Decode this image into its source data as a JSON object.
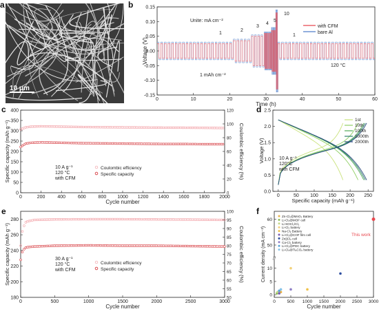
{
  "panels": {
    "a": {
      "label": "a",
      "scale_bar": "10 μm"
    },
    "b": {
      "label": "b"
    },
    "c": {
      "label": "c"
    },
    "d": {
      "label": "d"
    },
    "e": {
      "label": "e"
    },
    "f": {
      "label": "f"
    }
  },
  "chart_data": [
    {
      "id": "b",
      "type": "line",
      "xlabel": "Time (h)",
      "ylabel": "Voltage (V)",
      "xlim": [
        0,
        60
      ],
      "ylim": [
        -0.15,
        0.15
      ],
      "xticks": [
        0,
        10,
        20,
        30,
        40,
        50,
        60
      ],
      "yticks": [
        -0.15,
        -0.1,
        -0.05,
        0.0,
        0.05,
        0.1,
        0.15
      ],
      "ytick_labels": [
        "-0.15",
        "-0.10",
        "-0.05",
        "0.00",
        "0.05",
        "0.10",
        "0.15"
      ],
      "annotations": {
        "unit": "Unite: mA cm⁻²",
        "areal": "1 mAh cm⁻²",
        "temp": "120 °C"
      },
      "current_densities": [
        {
          "label": "1",
          "t_start": 0,
          "t_end": 21,
          "cfm_amp": 0.025,
          "al_amp": 0.03
        },
        {
          "label": "2",
          "t_start": 21,
          "t_end": 26,
          "cfm_amp": 0.035,
          "al_amp": 0.04
        },
        {
          "label": "3",
          "t_start": 26,
          "t_end": 29.5,
          "cfm_amp": 0.05,
          "al_amp": 0.055
        },
        {
          "label": "4",
          "t_start": 29.5,
          "t_end": 31.5,
          "cfm_amp": 0.06,
          "al_amp": 0.065
        },
        {
          "label": "5",
          "t_start": 31.5,
          "t_end": 32.7,
          "cfm_amp": 0.07,
          "al_amp": 0.08
        },
        {
          "label": "10",
          "t_start": 32.7,
          "t_end": 33.3,
          "cfm_amp": 0.13,
          "al_amp": 0.14
        },
        {
          "label": "1",
          "t_start": 33.3,
          "t_end": 60,
          "cfm_amp": 0.025,
          "al_amp": 0.03
        }
      ],
      "series": [
        {
          "name": "with CFM",
          "color": "#e8484f"
        },
        {
          "name": "bare Al",
          "color": "#4f7ec9"
        }
      ]
    },
    {
      "id": "c",
      "type": "scatter",
      "xlabel": "Cycle number",
      "ylabel": "Specific capacity (mAh g⁻¹)",
      "y2label": "Coulombic efficiency (%)",
      "xlim": [
        0,
        2000
      ],
      "ylim": [
        0,
        400
      ],
      "y2lim": [
        0,
        120
      ],
      "xticks": [
        0,
        200,
        400,
        600,
        800,
        1000,
        1200,
        1400,
        1600,
        1800,
        2000
      ],
      "yticks": [
        0,
        50,
        100,
        150,
        200,
        250,
        300,
        350,
        400
      ],
      "y2ticks": [
        0,
        20,
        40,
        60,
        80,
        100,
        120
      ],
      "annotations": [
        "10 A g⁻¹",
        "120 °C",
        "with CFM"
      ],
      "series": [
        {
          "name": "Coulombic efficiency",
          "color": "#f2a0a6",
          "axis": "right",
          "x": [
            0,
            50,
            100,
            200,
            400,
            600,
            800,
            1000,
            1200,
            1400,
            1600,
            1800,
            2000
          ],
          "values": [
            92,
            95,
            96,
            96.5,
            96,
            95.5,
            95.2,
            95,
            94.8,
            94.6,
            94.5,
            94.3,
            94
          ]
        },
        {
          "name": "Specific capacity",
          "color": "#d63a3f",
          "axis": "left",
          "x": [
            0,
            50,
            100,
            200,
            400,
            600,
            800,
            1000,
            1200,
            1400,
            1600,
            1800,
            2000
          ],
          "values": [
            222,
            238,
            242,
            244,
            242,
            240,
            239,
            238,
            237,
            236,
            236,
            235,
            235
          ]
        }
      ]
    },
    {
      "id": "d",
      "type": "line",
      "xlabel": "Specific capacity (mAh g⁻¹)",
      "ylabel": "Voltage (V)",
      "xlim": [
        -15,
        265
      ],
      "ylim": [
        0,
        2.5
      ],
      "xticks": [
        0,
        50,
        100,
        150,
        200,
        250
      ],
      "yticks": [
        0,
        0.5,
        1.0,
        1.5,
        2.0,
        2.5
      ],
      "ytick_labels": [
        "0.0",
        "0.5",
        "1.0",
        "1.5",
        "2.0",
        "2.5"
      ],
      "annotations": [
        "10 A g⁻¹",
        "120°C",
        "with CFM"
      ],
      "series": [
        {
          "name": "1st",
          "color": "#c9e27a",
          "cap": 180
        },
        {
          "name": "10th",
          "color": "#8fcf63",
          "cap": 222
        },
        {
          "name": "100th",
          "color": "#4fa855",
          "cap": 238
        },
        {
          "name": "1000th",
          "color": "#2d7f6a",
          "cap": 242
        },
        {
          "name": "2000th",
          "color": "#2b4c7e",
          "cap": 246
        }
      ]
    },
    {
      "id": "e",
      "type": "scatter",
      "xlabel": "Cycle number",
      "ylabel": "Specific capacity (mAh g⁻¹)",
      "y2label": "Coulombic efficiency (%)",
      "xlim": [
        0,
        3000
      ],
      "ylim": [
        180,
        290
      ],
      "y2lim": [
        50,
        100
      ],
      "xticks": [
        0,
        500,
        1000,
        1500,
        2000,
        2500,
        3000
      ],
      "yticks": [
        180,
        200,
        220,
        240,
        260,
        280
      ],
      "y2ticks": [
        50,
        55,
        60,
        65,
        70,
        75,
        80,
        85,
        90,
        95,
        100
      ],
      "annotations": [
        "30 A g⁻¹",
        "120 °C",
        "with CFM"
      ],
      "series": [
        {
          "name": "Coulombic efficiency",
          "color": "#f2a0a6",
          "axis": "right",
          "x": [
            0,
            30,
            80,
            200,
            500,
            1000,
            1500,
            2000,
            2500,
            3000
          ],
          "values": [
            80,
            90,
            94,
            95,
            95.3,
            95.4,
            95.4,
            95.3,
            95.2,
            95
          ]
        },
        {
          "name": "Specific capacity",
          "color": "#d63a3f",
          "axis": "left",
          "x": [
            0,
            30,
            80,
            200,
            500,
            1000,
            1500,
            2000,
            2500,
            3000
          ],
          "values": [
            228,
            240,
            244,
            245,
            246,
            246.5,
            246,
            246,
            245.5,
            245
          ]
        }
      ]
    },
    {
      "id": "f",
      "type": "scatter",
      "xlabel": "Cycle number",
      "ylabel": "Current density (mA cm⁻²)",
      "xlim": [
        0,
        3000
      ],
      "xticks": [
        0,
        500,
        1000,
        1500,
        2000,
        2500,
        3000
      ],
      "yticks_lower": [
        0,
        5,
        10
      ],
      "yticks_upper": [
        50,
        60
      ],
      "annotation": "This work",
      "series": [
        {
          "name": "Zn-Cl₂@MnO₂ Battery",
          "color": "#e9b44c",
          "x": [
            200
          ],
          "y": [
            1
          ]
        },
        {
          "name": "Li-Cl₂@MOF cell",
          "color": "#8fbf5a",
          "x": [
            80
          ],
          "y": [
            0.5
          ]
        },
        {
          "name": "Li-SOCl₂/Cl₂",
          "color": "#c6d88a",
          "x": [
            100
          ],
          "y": [
            1
          ]
        },
        {
          "name": "Li-Cl₂ battery",
          "color": "#f3d27a",
          "x": [
            500
          ],
          "y": [
            10
          ]
        },
        {
          "name": "Na-Cl₂ Battery",
          "color": "#f0c24a",
          "x": [
            1000
          ],
          "y": [
            2
          ]
        },
        {
          "name": "Li-Cl₂@COF film cell",
          "color": "#7c5fb3",
          "x": [
            150
          ],
          "y": [
            0.5
          ]
        },
        {
          "name": "Zn||Cl₂ cell",
          "color": "#2f4fa0",
          "x": [
            2000
          ],
          "y": [
            8
          ]
        },
        {
          "name": "Ca-Cl₂ battery",
          "color": "#8e7fc6",
          "x": [
            500
          ],
          "y": [
            2
          ]
        },
        {
          "name": "Li-Cl₂@PDC battery",
          "color": "#5aa6d8",
          "x": [
            150
          ],
          "y": [
            1.5
          ]
        },
        {
          "name": "Li-Cl₂@Ti₃CO₂ battery",
          "color": "#86c3e8",
          "x": [
            200
          ],
          "y": [
            2
          ]
        },
        {
          "name": "This work",
          "color": "#e8484f",
          "x": [
            3000
          ],
          "y": [
            60
          ]
        }
      ]
    }
  ]
}
